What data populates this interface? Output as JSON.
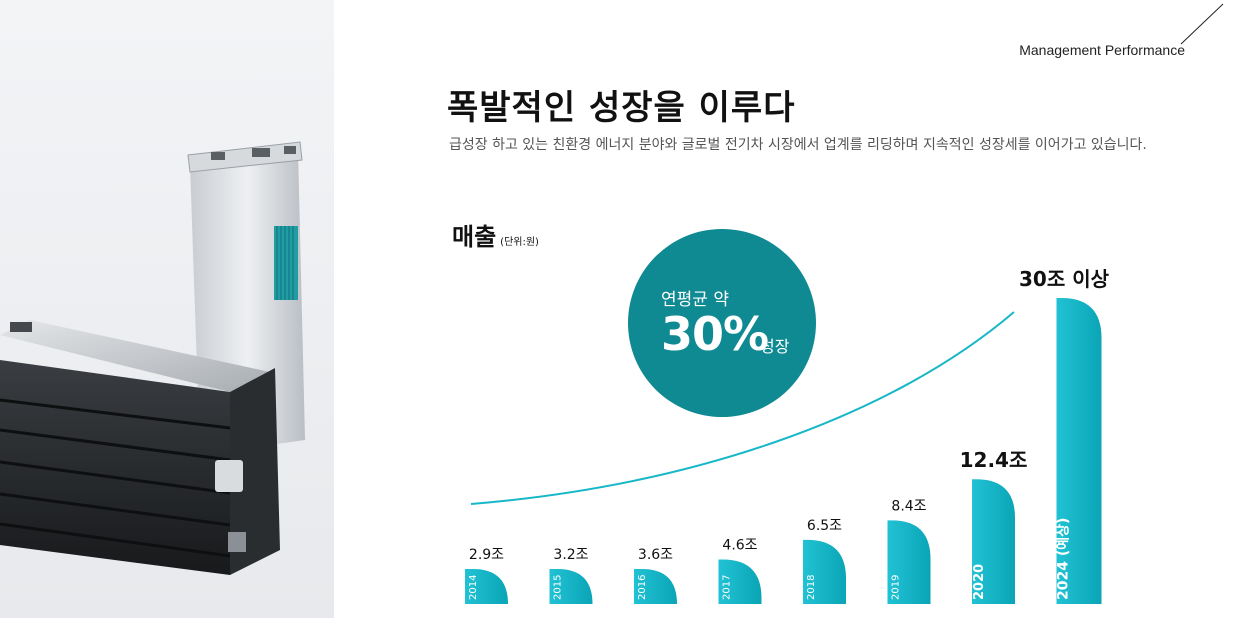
{
  "header": {
    "section_label": "Management Performance",
    "headline": "폭발적인 성장을 이루다",
    "subline": "급성장 하고 있는 친환경 에너지 분야와 글로벌 전기차 시장에서 업계를 리딩하며 지속적인 성장세를 이어가고 있습니다."
  },
  "metric": {
    "title": "매출",
    "unit": "(단위:원)"
  },
  "growth_badge": {
    "top": "연평균 약",
    "value": "30%",
    "suffix": "성장"
  },
  "colors": {
    "accent": "#0f8a93",
    "bar_light": "#21c2d4",
    "bar_dark": "#0aa5b6",
    "curve": "#17b7c8"
  },
  "chart_data": {
    "type": "bar",
    "categories": [
      "2014",
      "2015",
      "2016",
      "2017",
      "2018",
      "2019",
      "2020",
      "2024 (예상)"
    ],
    "values": [
      2.9,
      3.2,
      3.6,
      4.6,
      6.5,
      8.4,
      12.4,
      30
    ],
    "value_labels": [
      "2.9조",
      "3.2조",
      "3.6조",
      "4.6조",
      "6.5조",
      "8.4조",
      "12.4조",
      "30조 이상"
    ],
    "unit": "조 원"
  }
}
